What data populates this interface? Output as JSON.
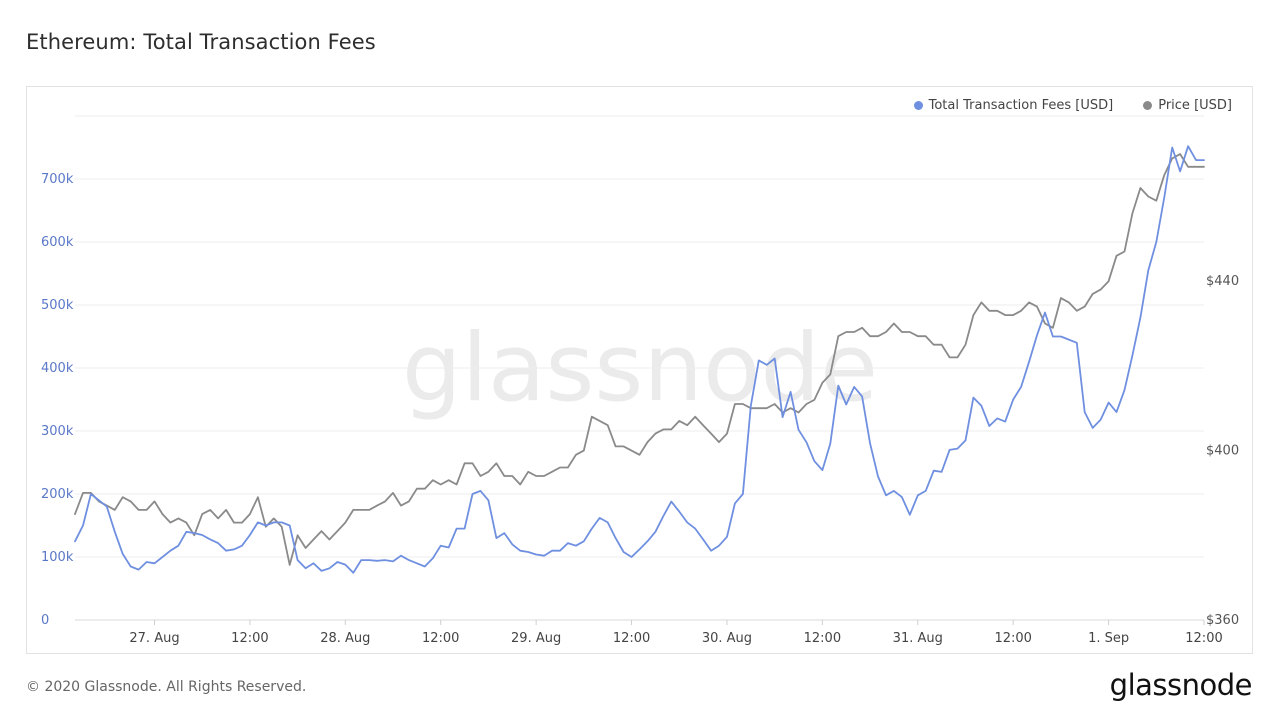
{
  "page": {
    "title": "Ethereum: Total Transaction Fees",
    "copyright": "© 2020 Glassnode. All Rights Reserved.",
    "logo": "glassnode",
    "watermark": "glassnode"
  },
  "colors": {
    "fees": "#6f8fe0",
    "price": "#8a8a8a",
    "left_axis_text": "#5a78c8",
    "right_axis_text": "#555555",
    "grid": "#ececec"
  },
  "chart_data": {
    "type": "line",
    "title": "Ethereum: Total Transaction Fees",
    "legend_position": "top-right",
    "grid": true,
    "x_ticks": [
      "27. Aug",
      "12:00",
      "28. Aug",
      "12:00",
      "29. Aug",
      "12:00",
      "30. Aug",
      "12:00",
      "31. Aug",
      "12:00",
      "1. Sep",
      "12:00"
    ],
    "x_range_hours": [
      0,
      142
    ],
    "y_left": {
      "ticks": [
        "0",
        "100k",
        "200k",
        "300k",
        "400k",
        "500k",
        "600k",
        "700k"
      ],
      "lim": [
        0,
        800000
      ]
    },
    "y_right": {
      "ticks": [
        "$360",
        "$400",
        "$440"
      ],
      "lim": [
        360,
        479
      ]
    },
    "series": [
      {
        "name": "Total Transaction Fees [USD]",
        "axis": "left",
        "x_hours": [
          0,
          1,
          2,
          3,
          4,
          5,
          6,
          7,
          8,
          9,
          10,
          11,
          12,
          13,
          14,
          15,
          16,
          17,
          18,
          19,
          20,
          21,
          22,
          23,
          24,
          25,
          26,
          27,
          28,
          29,
          30,
          31,
          32,
          33,
          34,
          35,
          36,
          37,
          38,
          39,
          40,
          41,
          42,
          43,
          44,
          45,
          46,
          47,
          48,
          49,
          50,
          51,
          52,
          53,
          54,
          55,
          56,
          57,
          58,
          59,
          60,
          61,
          62,
          63,
          64,
          65,
          66,
          67,
          68,
          69,
          70,
          71,
          72,
          73,
          74,
          75,
          76,
          77,
          78,
          79,
          80,
          81,
          82,
          83,
          84,
          85,
          86,
          87,
          88,
          89,
          90,
          91,
          92,
          93,
          94,
          95,
          96,
          97,
          98,
          99,
          100,
          101,
          102,
          103,
          104,
          105,
          106,
          107,
          108,
          109,
          110,
          111,
          112,
          113,
          114,
          115,
          116,
          117,
          118,
          119,
          120,
          121,
          122,
          123,
          124,
          125,
          126,
          127,
          128,
          129,
          130,
          131,
          132,
          133,
          134,
          135,
          136,
          137,
          138,
          139,
          140,
          141,
          142
        ],
        "values": [
          125000,
          150000,
          200000,
          190000,
          180000,
          140000,
          105000,
          85000,
          80000,
          92000,
          90000,
          100000,
          110000,
          118000,
          140000,
          138000,
          135000,
          128000,
          122000,
          110000,
          112000,
          118000,
          135000,
          155000,
          150000,
          155000,
          155000,
          150000,
          95000,
          82000,
          90000,
          78000,
          82000,
          92000,
          88000,
          75000,
          95000,
          95000,
          94000,
          95000,
          93000,
          102000,
          95000,
          90000,
          85000,
          98000,
          118000,
          115000,
          145000,
          145000,
          200000,
          205000,
          190000,
          130000,
          138000,
          120000,
          110000,
          108000,
          104000,
          102000,
          110000,
          110000,
          122000,
          118000,
          125000,
          145000,
          162000,
          155000,
          130000,
          108000,
          100000,
          112000,
          125000,
          140000,
          165000,
          188000,
          172000,
          155000,
          145000,
          128000,
          110000,
          118000,
          132000,
          185000,
          200000,
          340000,
          412000,
          405000,
          415000,
          322000,
          362000,
          302000,
          282000,
          252000,
          238000,
          280000,
          372000,
          342000,
          370000,
          355000,
          280000,
          228000,
          198000,
          205000,
          195000,
          167000,
          198000,
          205000,
          237000,
          235000,
          270000,
          272000,
          285000,
          353000,
          340000,
          308000,
          320000,
          315000,
          350000,
          370000,
          410000,
          452000,
          488000,
          450000,
          450000,
          445000,
          440000,
          330000,
          305000,
          318000,
          345000,
          330000,
          365000,
          420000,
          480000,
          555000,
          600000,
          670000,
          750000,
          712000,
          752000,
          730000,
          730000
        ]
      },
      {
        "name": "Price [USD]",
        "axis": "right",
        "x_hours": [
          0,
          1,
          2,
          3,
          4,
          5,
          6,
          7,
          8,
          9,
          10,
          11,
          12,
          13,
          14,
          15,
          16,
          17,
          18,
          19,
          20,
          21,
          22,
          23,
          24,
          25,
          26,
          27,
          28,
          29,
          30,
          31,
          32,
          33,
          34,
          35,
          36,
          37,
          38,
          39,
          40,
          41,
          42,
          43,
          44,
          45,
          46,
          47,
          48,
          49,
          50,
          51,
          52,
          53,
          54,
          55,
          56,
          57,
          58,
          59,
          60,
          61,
          62,
          63,
          64,
          65,
          66,
          67,
          68,
          69,
          70,
          71,
          72,
          73,
          74,
          75,
          76,
          77,
          78,
          79,
          80,
          81,
          82,
          83,
          84,
          85,
          86,
          87,
          88,
          89,
          90,
          91,
          92,
          93,
          94,
          95,
          96,
          97,
          98,
          99,
          100,
          101,
          102,
          103,
          104,
          105,
          106,
          107,
          108,
          109,
          110,
          111,
          112,
          113,
          114,
          115,
          116,
          117,
          118,
          119,
          120,
          121,
          122,
          123,
          124,
          125,
          126,
          127,
          128,
          129,
          130,
          131,
          132,
          133,
          134,
          135,
          136,
          137,
          138,
          139,
          140,
          141,
          142
        ],
        "values": [
          385,
          390,
          390,
          388,
          387,
          386,
          389,
          388,
          386,
          386,
          388,
          385,
          383,
          384,
          383,
          380,
          385,
          386,
          384,
          386,
          383,
          383,
          385,
          389,
          382,
          384,
          382,
          373,
          380,
          377,
          379,
          381,
          379,
          381,
          383,
          386,
          386,
          386,
          387,
          388,
          390,
          387,
          388,
          391,
          391,
          393,
          392,
          393,
          392,
          397,
          397,
          394,
          395,
          397,
          394,
          394,
          392,
          395,
          394,
          394,
          395,
          396,
          396,
          399,
          400,
          408,
          407,
          406,
          401,
          401,
          400,
          399,
          402,
          404,
          405,
          405,
          407,
          406,
          408,
          406,
          404,
          402,
          404,
          411,
          411,
          410,
          410,
          410,
          411,
          409,
          410,
          409,
          411,
          412,
          416,
          418,
          427,
          428,
          428,
          429,
          427,
          427,
          428,
          430,
          428,
          428,
          427,
          427,
          425,
          425,
          422,
          422,
          425,
          432,
          435,
          433,
          433,
          432,
          432,
          433,
          435,
          434,
          430,
          429,
          436,
          435,
          433,
          434,
          437,
          438,
          440,
          446,
          447,
          456,
          462,
          460,
          459,
          465,
          469,
          470,
          467,
          467,
          467
        ]
      }
    ]
  },
  "legend": {
    "fees_label": "Total Transaction Fees [USD]",
    "price_label": "Price [USD]"
  }
}
